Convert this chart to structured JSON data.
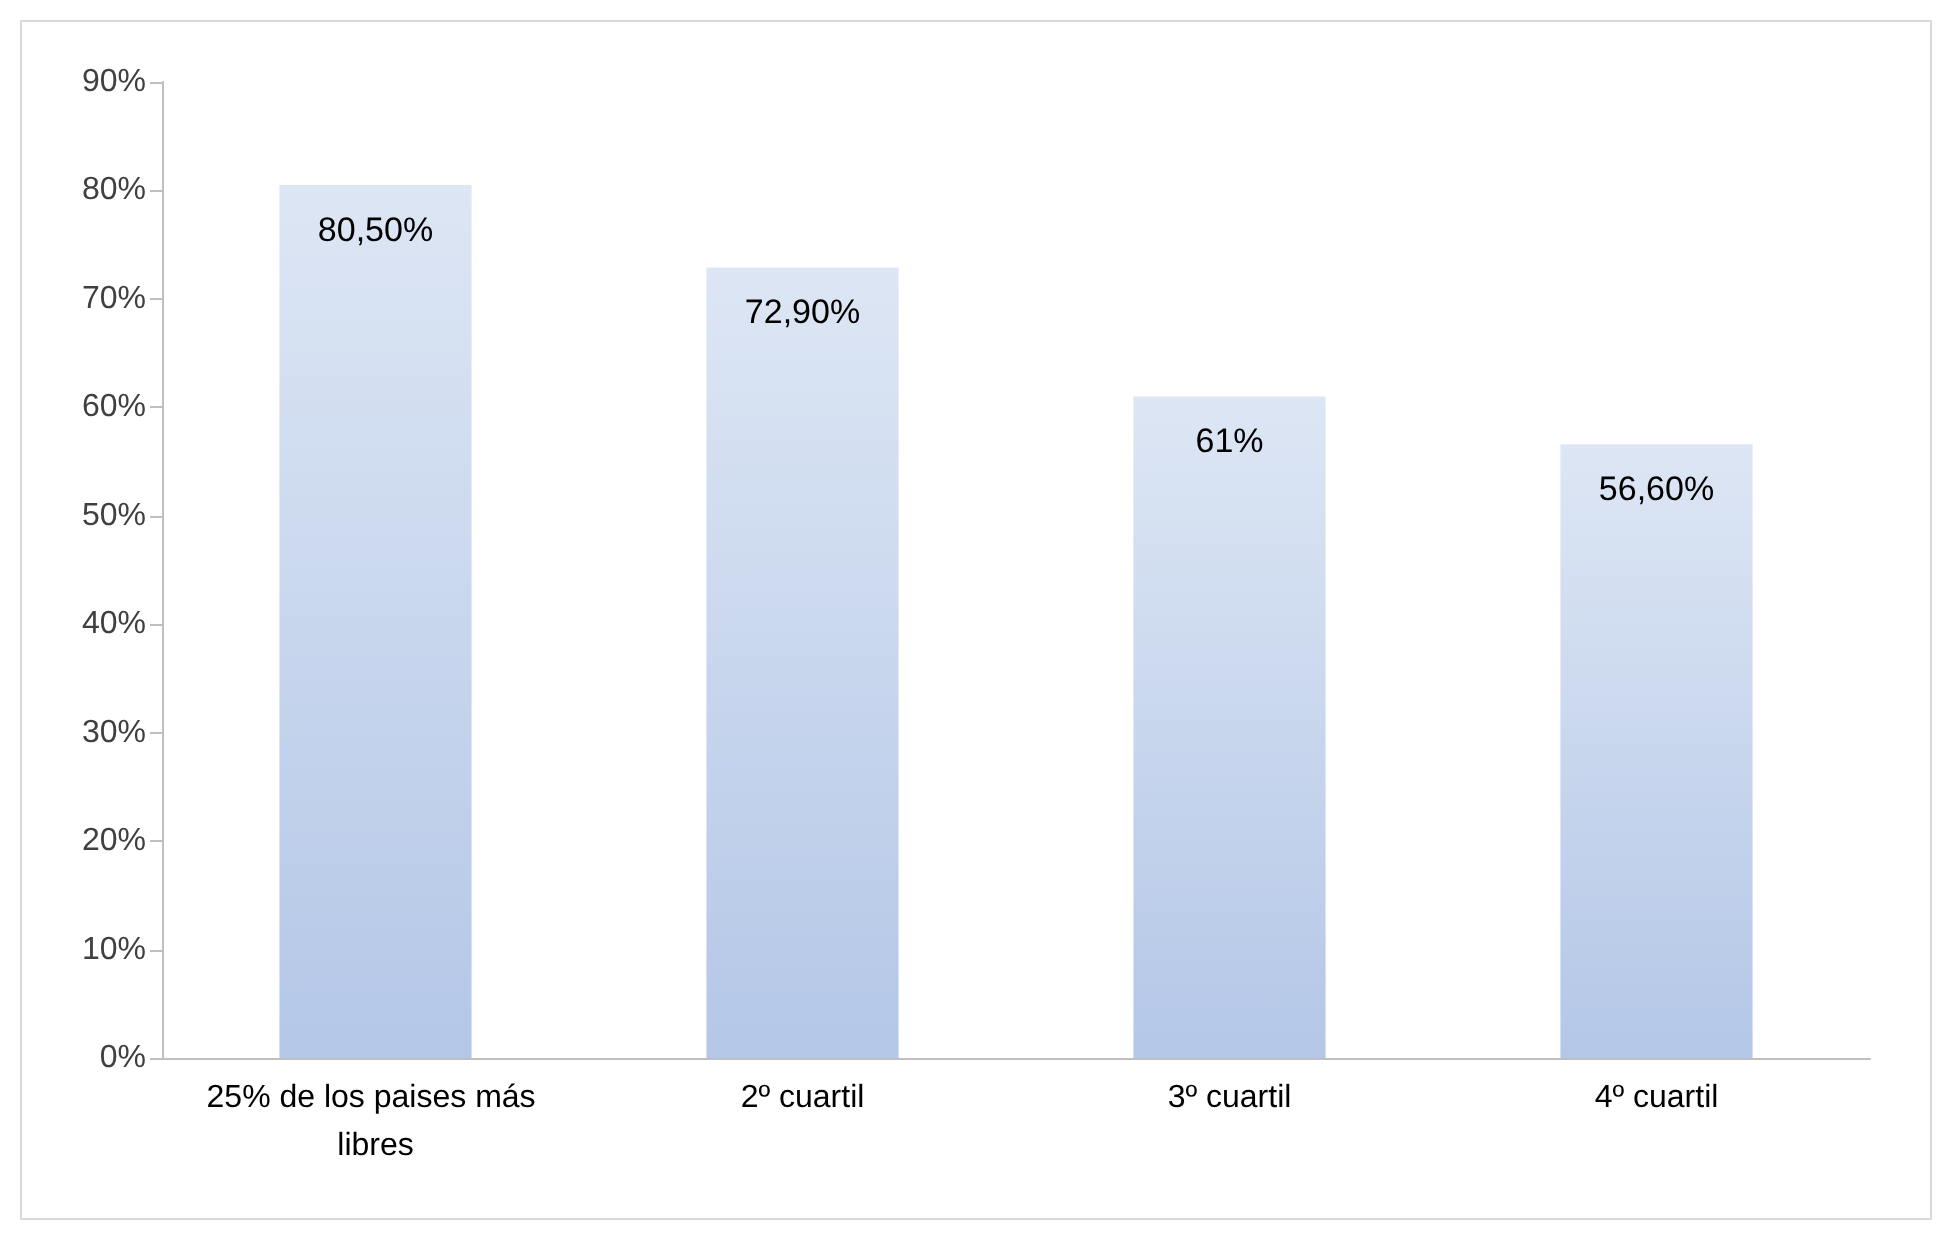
{
  "chart_data": {
    "type": "bar",
    "categories": [
      "25% de los paises más libres",
      "2º cuartil",
      "3º cuartil",
      "4º cuartil"
    ],
    "values": [
      80.5,
      72.9,
      61,
      56.6
    ],
    "value_labels": [
      "80,50%",
      "72,90%",
      "61%",
      "56,60%"
    ],
    "color": "#b4c7e7",
    "ylim": [
      0,
      90
    ],
    "yticks": [
      {
        "value": 0,
        "label": "0%"
      },
      {
        "value": 10,
        "label": "10%"
      },
      {
        "value": 20,
        "label": "20%"
      },
      {
        "value": 30,
        "label": "30%"
      },
      {
        "value": 40,
        "label": "40%"
      },
      {
        "value": 50,
        "label": "50%"
      },
      {
        "value": 60,
        "label": "60%"
      },
      {
        "value": 70,
        "label": "70%"
      },
      {
        "value": 80,
        "label": "80%"
      },
      {
        "value": 90,
        "label": "90%"
      }
    ],
    "grid": false
  }
}
